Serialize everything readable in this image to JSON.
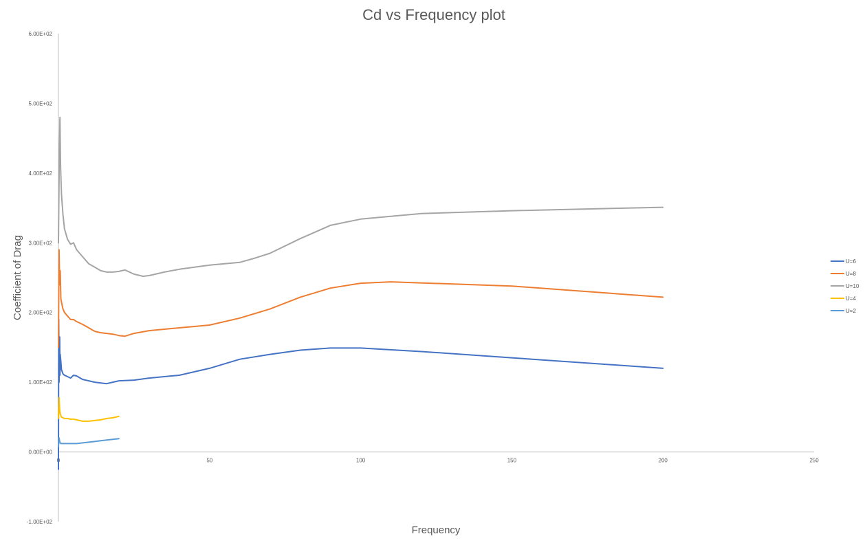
{
  "chart_data": {
    "type": "line",
    "title": "Cd vs Frequency plot",
    "xlabel": "Frequency",
    "ylabel": "Coefficient of Drag",
    "xlim": [
      0,
      250
    ],
    "ylim": [
      -100,
      600
    ],
    "x_ticks": [
      "0",
      "50",
      "100",
      "150",
      "200",
      "250"
    ],
    "x_tick_values": [
      0,
      50,
      100,
      150,
      200,
      250
    ],
    "y_ticks": [
      "6.00E+02",
      "5.00E+02",
      "4.00E+02",
      "3.00E+02",
      "2.00E+02",
      "1.00E+02",
      "0.00E+00",
      "-1.00E+02"
    ],
    "y_tick_values": [
      600,
      500,
      400,
      300,
      200,
      100,
      0,
      -100
    ],
    "grid": false,
    "legend_position": "right",
    "series": [
      {
        "name": "U=6",
        "color": "#4472c4",
        "x": [
          0,
          0.1,
          0.2,
          0.3,
          0.4,
          0.5,
          0.6,
          0.8,
          1.0,
          1.5,
          2,
          3,
          4,
          5,
          6,
          8,
          10,
          12,
          14,
          16,
          18,
          20,
          25,
          30,
          40,
          50,
          60,
          70,
          80,
          90,
          100,
          120,
          150,
          200
        ],
        "y": [
          -25,
          190,
          100,
          120,
          165,
          110,
          140,
          130,
          118,
          112,
          110,
          108,
          106,
          110,
          109,
          104,
          102,
          100,
          99,
          98,
          100,
          102,
          103,
          106,
          110,
          120,
          133,
          140,
          146,
          149,
          149,
          144,
          135,
          120
        ]
      },
      {
        "name": "U=8",
        "color": "#ed7d31",
        "x": [
          0,
          0.2,
          0.4,
          0.6,
          0.8,
          1,
          1.5,
          2,
          3,
          4,
          5,
          6,
          8,
          10,
          12,
          14,
          16,
          18,
          20,
          22,
          25,
          30,
          40,
          50,
          60,
          70,
          80,
          90,
          100,
          110,
          150,
          200
        ],
        "y": [
          150,
          290,
          240,
          260,
          220,
          215,
          205,
          200,
          195,
          190,
          190,
          187,
          183,
          178,
          173,
          171,
          170,
          169,
          167,
          166,
          170,
          174,
          178,
          182,
          192,
          205,
          222,
          235,
          242,
          244,
          238,
          222
        ]
      },
      {
        "name": "U=10",
        "color": "#a5a5a5",
        "x": [
          0,
          0.3,
          0.5,
          0.7,
          1,
          1.5,
          2,
          3,
          4,
          5,
          6,
          8,
          10,
          12,
          14,
          16,
          18,
          20,
          22,
          25,
          28,
          30,
          35,
          40,
          50,
          60,
          65,
          70,
          80,
          90,
          100,
          120,
          150,
          200
        ],
        "y": [
          300,
          430,
          480,
          410,
          370,
          340,
          320,
          305,
          298,
          300,
          290,
          280,
          270,
          265,
          260,
          258,
          258,
          259,
          261,
          255,
          252,
          253,
          258,
          262,
          268,
          272,
          278,
          285,
          306,
          325,
          334,
          342,
          346,
          351
        ]
      },
      {
        "name": "U=4",
        "color": "#ffc000",
        "x": [
          0,
          0.2,
          0.4,
          0.6,
          0.8,
          1,
          1.5,
          2,
          3,
          4,
          5,
          6,
          8,
          10,
          12,
          14,
          16,
          18,
          20
        ],
        "y": [
          48,
          78,
          60,
          55,
          52,
          50,
          49,
          48,
          48,
          47,
          47,
          46,
          44,
          44,
          45,
          46,
          48,
          49,
          51
        ]
      },
      {
        "name": "U=2",
        "color": "#5b9bd5",
        "x": [
          0,
          0.2,
          0.4,
          0.6,
          0.8,
          1,
          1.5,
          2,
          3,
          4,
          5,
          6,
          8,
          10,
          12,
          14,
          16,
          18,
          20
        ],
        "y": [
          8,
          20,
          15,
          13,
          12,
          12,
          12,
          12,
          12,
          12,
          12,
          12,
          13,
          14,
          15,
          16,
          17,
          18,
          19
        ]
      }
    ]
  }
}
